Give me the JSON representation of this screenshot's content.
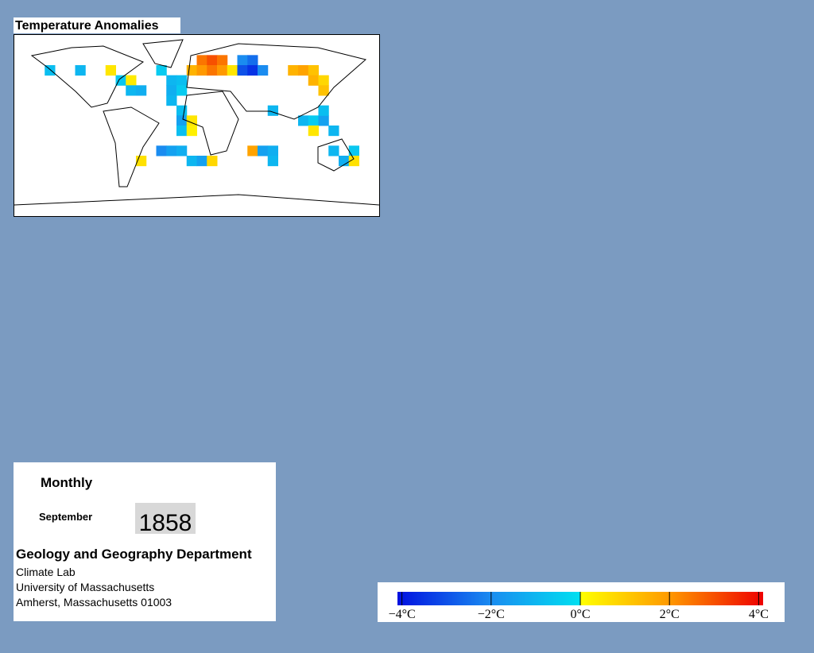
{
  "map_title": "Temperature Anomalies",
  "anomaly_cells": [
    {
      "lon": 0,
      "lat": 70,
      "value": 2.5
    },
    {
      "lon": 10,
      "lat": 70,
      "value": 3
    },
    {
      "lon": 20,
      "lat": 70,
      "value": 2.5
    },
    {
      "lon": -10,
      "lat": 60,
      "value": 1.5
    },
    {
      "lon": 0,
      "lat": 60,
      "value": 2
    },
    {
      "lon": 10,
      "lat": 60,
      "value": 2.5
    },
    {
      "lon": 20,
      "lat": 60,
      "value": 2
    },
    {
      "lon": 30,
      "lat": 60,
      "value": 0.5
    },
    {
      "lon": 40,
      "lat": 70,
      "value": -2
    },
    {
      "lon": 50,
      "lat": 70,
      "value": -2.5
    },
    {
      "lon": 40,
      "lat": 60,
      "value": -3
    },
    {
      "lon": 50,
      "lat": 60,
      "value": -3.5
    },
    {
      "lon": 60,
      "lat": 60,
      "value": -2
    },
    {
      "lon": 90,
      "lat": 60,
      "value": 1.5
    },
    {
      "lon": 100,
      "lat": 60,
      "value": 1.8
    },
    {
      "lon": 110,
      "lat": 60,
      "value": 1.2
    },
    {
      "lon": 110,
      "lat": 50,
      "value": 1.5
    },
    {
      "lon": 120,
      "lat": 50,
      "value": 0.8
    },
    {
      "lon": 120,
      "lat": 40,
      "value": 1.2
    },
    {
      "lon": -40,
      "lat": 60,
      "value": -0.5
    },
    {
      "lon": -30,
      "lat": 50,
      "value": -1
    },
    {
      "lon": -20,
      "lat": 50,
      "value": -0.8
    },
    {
      "lon": -30,
      "lat": 40,
      "value": -1.2
    },
    {
      "lon": -20,
      "lat": 40,
      "value": -0.5
    },
    {
      "lon": -30,
      "lat": 30,
      "value": -1
    },
    {
      "lon": -20,
      "lat": 20,
      "value": -0.8
    },
    {
      "lon": -20,
      "lat": 10,
      "value": -1.5
    },
    {
      "lon": -10,
      "lat": 10,
      "value": 0.5
    },
    {
      "lon": -20,
      "lat": 0,
      "value": -0.8
    },
    {
      "lon": -10,
      "lat": 0,
      "value": 0.3
    },
    {
      "lon": -150,
      "lat": 60,
      "value": -0.8
    },
    {
      "lon": -120,
      "lat": 60,
      "value": -1
    },
    {
      "lon": -90,
      "lat": 60,
      "value": 0.5
    },
    {
      "lon": -80,
      "lat": 50,
      "value": -0.6
    },
    {
      "lon": -70,
      "lat": 50,
      "value": 0.4
    },
    {
      "lon": -70,
      "lat": 40,
      "value": -1
    },
    {
      "lon": -60,
      "lat": 40,
      "value": -1.2
    },
    {
      "lon": 70,
      "lat": 20,
      "value": -1
    },
    {
      "lon": 100,
      "lat": 10,
      "value": -1
    },
    {
      "lon": 110,
      "lat": 10,
      "value": -0.5
    },
    {
      "lon": 120,
      "lat": 10,
      "value": -1.5
    },
    {
      "lon": 120,
      "lat": 20,
      "value": -0.8
    },
    {
      "lon": 110,
      "lat": 0,
      "value": 0.5
    },
    {
      "lon": 130,
      "lat": 0,
      "value": -1
    },
    {
      "lon": -40,
      "lat": -20,
      "value": -2
    },
    {
      "lon": -30,
      "lat": -20,
      "value": -1.5
    },
    {
      "lon": -20,
      "lat": -20,
      "value": -1.2
    },
    {
      "lon": -10,
      "lat": -30,
      "value": -1
    },
    {
      "lon": 0,
      "lat": -30,
      "value": -1.5
    },
    {
      "lon": 10,
      "lat": -30,
      "value": 0.8
    },
    {
      "lon": -60,
      "lat": -30,
      "value": 0.6
    },
    {
      "lon": 50,
      "lat": -20,
      "value": 1.8
    },
    {
      "lon": 60,
      "lat": -20,
      "value": -1.5
    },
    {
      "lon": 70,
      "lat": -20,
      "value": -1.2
    },
    {
      "lon": 70,
      "lat": -30,
      "value": -1
    },
    {
      "lon": 130,
      "lat": -20,
      "value": -1
    },
    {
      "lon": 150,
      "lat": -20,
      "value": -0.6
    },
    {
      "lon": 140,
      "lat": -30,
      "value": -1.2
    },
    {
      "lon": 150,
      "lat": -30,
      "value": 0.6
    }
  ],
  "info": {
    "period": "Monthly",
    "month": "September",
    "year": "1858",
    "department": "Geology and Geography Department",
    "address": [
      "Climate Lab",
      "University of Massachusetts",
      "Amherst, Massachusetts 01003"
    ]
  },
  "colorbar": {
    "range": [
      -4.1,
      4.1
    ],
    "colors": [
      "#0010e0",
      "#1a8cf0",
      "#00e0f0",
      "#ffff00",
      "#ff9900",
      "#ee0000"
    ],
    "color_stops": [
      -4.1,
      -2,
      0,
      0.01,
      2,
      4.1
    ],
    "ticks": [
      {
        "value": -4,
        "label": "−4°C"
      },
      {
        "value": -2,
        "label": "−2°C"
      },
      {
        "value": 0,
        "label": "0°C"
      },
      {
        "value": 2,
        "label": "2°C"
      },
      {
        "value": 4,
        "label": "4°C"
      }
    ]
  }
}
